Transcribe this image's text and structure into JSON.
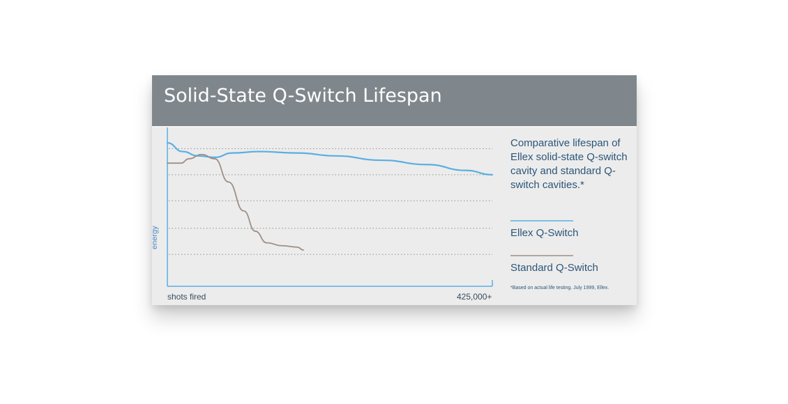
{
  "header": {
    "title": "Solid-State Q-Switch Lifespan"
  },
  "description": "Comparative lifespan of Ellex solid-state Q-switch cavity and standard Q-switch cavities.*",
  "footnote": "*Based on actual life testing. July 1999, Ellex.",
  "colors": {
    "header_bg": "#80878c",
    "ellex": "#5aaee4",
    "standard": "#9d8f87",
    "text": "#2c5578"
  },
  "chart_data": {
    "type": "line",
    "xlabel": "shots fired",
    "ylabel": "energy",
    "x_ticks": [
      "425,000+"
    ],
    "xlim": [
      0,
      425000
    ],
    "ylim": [
      0,
      1
    ],
    "grid": "horizontal dotted",
    "legend": "right",
    "series": [
      {
        "name": "Ellex Q-Switch",
        "color": "#5aaee4",
        "points": [
          [
            0,
            0.99
          ],
          [
            20000,
            0.93
          ],
          [
            40000,
            0.9
          ],
          [
            62000,
            0.89
          ],
          [
            85000,
            0.92
          ],
          [
            120000,
            0.93
          ],
          [
            170000,
            0.92
          ],
          [
            220000,
            0.9
          ],
          [
            280000,
            0.87
          ],
          [
            340000,
            0.84
          ],
          [
            390000,
            0.8
          ],
          [
            425000,
            0.77
          ]
        ]
      },
      {
        "name": "Standard Q-Switch",
        "color": "#9d8f87",
        "points": [
          [
            0,
            0.85
          ],
          [
            18000,
            0.85
          ],
          [
            28000,
            0.88
          ],
          [
            45000,
            0.91
          ],
          [
            62000,
            0.88
          ],
          [
            80000,
            0.72
          ],
          [
            100000,
            0.52
          ],
          [
            115000,
            0.38
          ],
          [
            130000,
            0.3
          ],
          [
            150000,
            0.28
          ],
          [
            170000,
            0.27
          ],
          [
            178000,
            0.25
          ]
        ]
      }
    ]
  }
}
